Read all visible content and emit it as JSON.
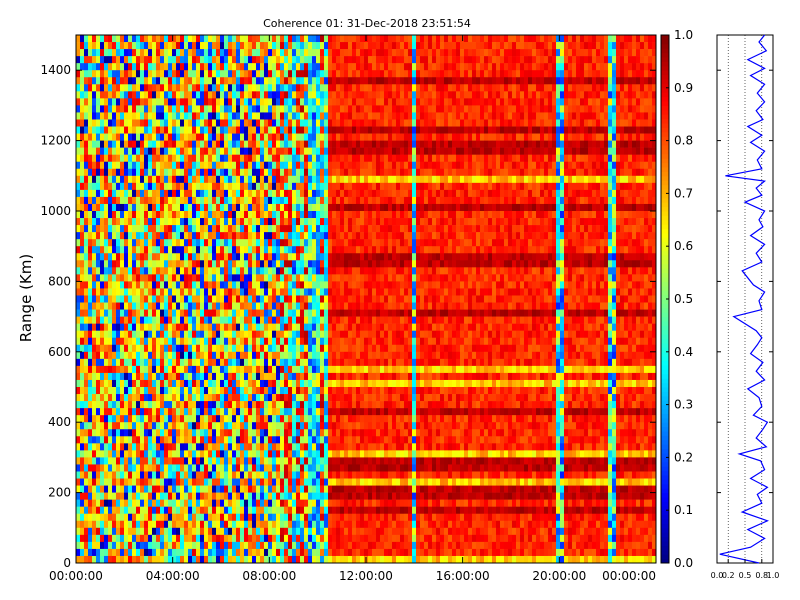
{
  "chart_data": [
    {
      "type": "heatmap",
      "title": "Coherence 01: 31-Dec-2018 23:51:54",
      "xlabel": "",
      "ylabel": "Range (Km)",
      "x_ticks": [
        "00:00:00",
        "04:00:00",
        "08:00:00",
        "12:00:00",
        "16:00:00",
        "20:00:00",
        "00:00:00"
      ],
      "y_ticks": [
        "0",
        "200",
        "400",
        "600",
        "800",
        "1000",
        "1200",
        "1400"
      ],
      "xlim": [
        "00:00:00",
        "00:00:00"
      ],
      "ylim": [
        0,
        1500
      ],
      "value_range": [
        0.0,
        1.0
      ],
      "colormap": "jet",
      "description_of_pattern": {
        "noisy_low_coherence_time_range": [
          "00:00:00",
          "08:30:00"
        ],
        "high_coherence_time_range": [
          "10:30:00",
          "24:00:00"
        ],
        "low_coherence_time_columns": [
          "09:00:00",
          "09:45:00",
          "10:00:00",
          "10:20:00",
          "14:00:00",
          "20:00:00",
          "22:10:00"
        ]
      },
      "colorbar": {
        "ticks": [
          "0.0",
          "0.1",
          "0.2",
          "0.3",
          "0.4",
          "0.5",
          "0.6",
          "0.7",
          "0.8",
          "0.9",
          "1.0"
        ],
        "range": [
          0.0,
          1.0
        ]
      }
    },
    {
      "type": "line",
      "title": "",
      "xlabel": "",
      "ylabel": "",
      "x_ticks": [
        "0.0",
        "0.2",
        "0.5",
        "0.8",
        "1.0"
      ],
      "xlim": [
        0.0,
        1.0
      ],
      "ylim": [
        0,
        1500
      ],
      "series": [
        {
          "color": "#0000ff",
          "points": [
            [
              0.75,
              0
            ],
            [
              0.05,
              25
            ],
            [
              0.6,
              45
            ],
            [
              0.85,
              70
            ],
            [
              0.55,
              95
            ],
            [
              0.9,
              120
            ],
            [
              0.45,
              145
            ],
            [
              0.8,
              170
            ],
            [
              0.72,
              195
            ],
            [
              0.9,
              215
            ],
            [
              0.6,
              240
            ],
            [
              0.85,
              265
            ],
            [
              0.78,
              290
            ],
            [
              0.4,
              310
            ],
            [
              0.88,
              330
            ],
            [
              0.7,
              355
            ],
            [
              0.82,
              380
            ],
            [
              0.9,
              400
            ],
            [
              0.65,
              420
            ],
            [
              0.8,
              445
            ],
            [
              0.75,
              470
            ],
            [
              0.55,
              495
            ],
            [
              0.85,
              520
            ],
            [
              0.7,
              545
            ],
            [
              0.82,
              570
            ],
            [
              0.6,
              595
            ],
            [
              0.72,
              620
            ],
            [
              0.8,
              640
            ],
            [
              0.7,
              660
            ],
            [
              0.3,
              700
            ],
            [
              0.8,
              720
            ],
            [
              0.75,
              745
            ],
            [
              0.85,
              770
            ],
            [
              0.65,
              790
            ],
            [
              0.45,
              830
            ],
            [
              0.8,
              855
            ],
            [
              0.7,
              880
            ],
            [
              0.85,
              905
            ],
            [
              0.6,
              930
            ],
            [
              0.82,
              955
            ],
            [
              0.75,
              975
            ],
            [
              0.85,
              1000
            ],
            [
              0.5,
              1025
            ],
            [
              0.8,
              1045
            ],
            [
              0.7,
              1065
            ],
            [
              0.85,
              1085
            ],
            [
              0.15,
              1100
            ],
            [
              0.8,
              1120
            ],
            [
              0.72,
              1145
            ],
            [
              0.85,
              1170
            ],
            [
              0.6,
              1195
            ],
            [
              0.8,
              1215
            ],
            [
              0.55,
              1240
            ],
            [
              0.82,
              1260
            ],
            [
              0.7,
              1285
            ],
            [
              0.85,
              1310
            ],
            [
              0.72,
              1335
            ],
            [
              0.85,
              1360
            ],
            [
              0.6,
              1385
            ],
            [
              0.85,
              1405
            ],
            [
              0.55,
              1430
            ],
            [
              0.88,
              1455
            ],
            [
              0.75,
              1480
            ],
            [
              0.85,
              1500
            ]
          ]
        }
      ]
    }
  ]
}
